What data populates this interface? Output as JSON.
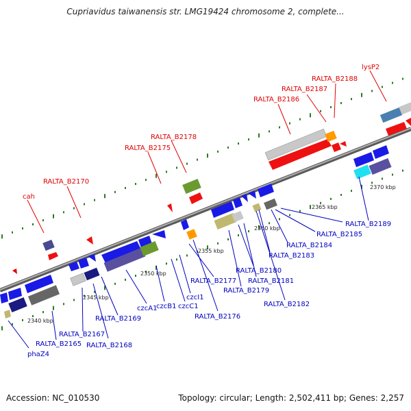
{
  "title": "Cupriavidus taiwanensis str. LMG19424 chromosome 2, complete...",
  "footer": {
    "accession": "Accession: NC_010530",
    "summary": "Topology: circular; Length: 2,502,411 bp; Genes: 2,257"
  },
  "ticks": [
    "2340 kbp",
    "2345 kbp",
    "2350 kbp",
    "2355 kbp",
    "2360 kbp",
    "2365 kbp",
    "2370 kbp"
  ],
  "labels_top": [
    "cah",
    "RALTA_B2170",
    "RALTA_B2175",
    "RALTA_B2178",
    "RALTA_B2186",
    "RALTA_B2187",
    "RALTA_B2188",
    "lysP2"
  ],
  "labels_bottom": [
    "phaZ4",
    "RALTA_B2165",
    "RALTA_B2167",
    "RALTA_B2168",
    "RALTA_B2169",
    "czcA1",
    "czcB1",
    "czcC1",
    "czcI1",
    "RALTA_B2176",
    "RALTA_B2177",
    "RALTA_B2179",
    "RALTA_B2180",
    "RALTA_B2181",
    "RALTA_B2182",
    "RALTA_B2183",
    "RALTA_B2184",
    "RALTA_B2185",
    "RALTA_B2189"
  ],
  "colors": {
    "label_top": "#e00000",
    "label_bottom": "#0000c0",
    "backbone": "#808080",
    "gene_red": "#ee1111",
    "gene_blue": "#1a1ae6",
    "gene_gray": "#c8c8c8",
    "gene_olive": "#c0b870",
    "gene_darkblue": "#1a1a80",
    "gene_purple": "#5a50a0",
    "gene_orange": "#ff9900",
    "gene_green": "#6a9a30",
    "gene_cyan": "#20e0f0",
    "gene_steel": "#4a80b0"
  }
}
